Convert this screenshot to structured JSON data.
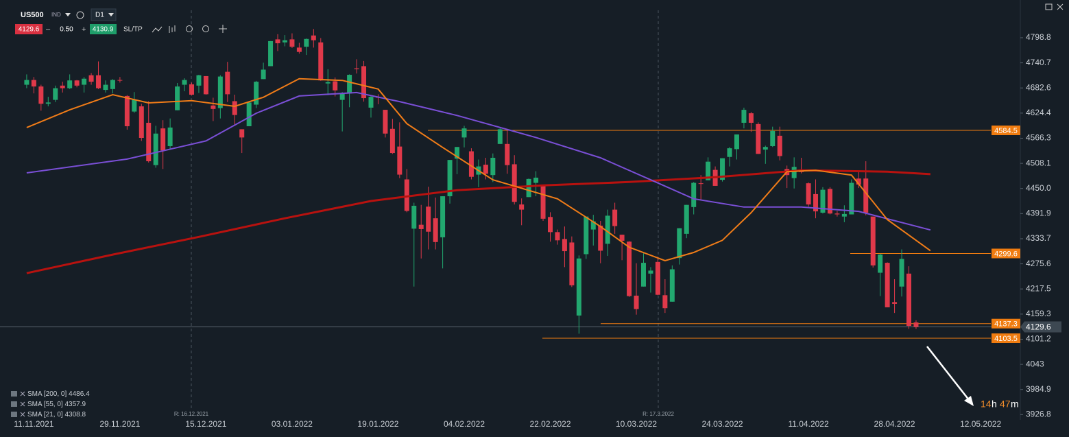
{
  "header": {
    "symbol": "US500",
    "market": "IND",
    "timeframe": "D1",
    "bid": "4129.6",
    "spread": "0.50",
    "ask": "4130.9",
    "sltp": "SL/TP"
  },
  "timer": [
    "14",
    "h",
    "47",
    "m"
  ],
  "chart_data": {
    "type": "candlestick",
    "categories": [
      null,
      null,
      null,
      "11.11.2021",
      null,
      null,
      null,
      null,
      null,
      null,
      null,
      null,
      null,
      null,
      null,
      "29.11.2021",
      null,
      null,
      null,
      null,
      null,
      null,
      null,
      null,
      null,
      null,
      null,
      "15.12.2021",
      null,
      null,
      null,
      null,
      null,
      null,
      null,
      null,
      null,
      null,
      null,
      "03.01.2022",
      null,
      null,
      null,
      null,
      null,
      null,
      null,
      null,
      null,
      null,
      null,
      "19.01.2022",
      null,
      null,
      null,
      null,
      null,
      null,
      null,
      null,
      null,
      null,
      null,
      "04.02.2022",
      null,
      null,
      null,
      null,
      null,
      null,
      null,
      null,
      null,
      null,
      null,
      "22.02.2022",
      null,
      null,
      null,
      null,
      null,
      null,
      null,
      null,
      null,
      null,
      null,
      "10.03.2022",
      null,
      null,
      null,
      null,
      null,
      null,
      null,
      null,
      null,
      null,
      null,
      "24.03.2022",
      null,
      null,
      null,
      null,
      null,
      null,
      null,
      null,
      null,
      null,
      null,
      "11.04.2022",
      null,
      null,
      null,
      null,
      null,
      null,
      null,
      null,
      null,
      null,
      null,
      "28.04.2022",
      null,
      null,
      null,
      null,
      null,
      null,
      null,
      null,
      null,
      null,
      null,
      "12.05.2022",
      null,
      null,
      null,
      null,
      null
    ],
    "ohlc": [
      null,
      null,
      [
        4690,
        4714,
        4682,
        4701
      ],
      [
        4701,
        4708,
        4670,
        4686
      ],
      [
        4686,
        4690,
        4630,
        4646
      ],
      [
        4646,
        4662,
        4640,
        4649
      ],
      [
        4655,
        4688,
        4650,
        4682
      ],
      [
        4688,
        4697,
        4672,
        4682
      ],
      [
        4682,
        4714,
        4680,
        4700
      ],
      [
        4700,
        4701,
        4684,
        4688
      ],
      [
        4690,
        4708,
        4672,
        4704
      ],
      [
        4712,
        4717,
        4690,
        4697
      ],
      [
        4712,
        4744,
        4680,
        4682
      ],
      [
        4678,
        4700,
        4672,
        4690
      ],
      [
        4680,
        4703,
        4670,
        4701
      ],
      [
        4701,
        4708,
        4695,
        4700
      ],
      [
        4664,
        4666,
        4586,
        4594
      ],
      [
        4628,
        4673,
        4625,
        4655
      ],
      [
        4640,
        4646,
        4560,
        4567
      ],
      [
        4602,
        4652,
        4510,
        4513
      ],
      [
        4504,
        4595,
        4498,
        4577
      ],
      [
        4589,
        4608,
        4495,
        4538
      ],
      [
        4548,
        4612,
        4540,
        4591
      ],
      [
        4631,
        4694,
        4631,
        4686
      ],
      [
        4690,
        4705,
        4675,
        4701
      ],
      [
        4691,
        4695,
        4665,
        4667
      ],
      [
        4688,
        4713,
        4671,
        4712
      ],
      [
        4710,
        4710,
        4667,
        4668
      ],
      [
        4642,
        4660,
        4606,
        4634
      ],
      [
        4636,
        4712,
        4612,
        4709
      ],
      [
        4720,
        4743,
        4650,
        4668
      ],
      [
        4652,
        4667,
        4598,
        4620
      ],
      [
        4587,
        4587,
        4532,
        4568
      ],
      [
        4594,
        4652,
        4594,
        4649
      ],
      [
        4644,
        4699,
        4636,
        4697
      ],
      [
        4703,
        4741,
        4703,
        4725
      ],
      [
        4733,
        4791,
        4733,
        4791
      ],
      [
        4795,
        4807,
        4768,
        4786
      ],
      [
        4788,
        4805,
        4779,
        4793
      ],
      [
        4795,
        4809,
        4775,
        4778
      ],
      [
        4776,
        4787,
        4762,
        4766
      ],
      [
        4778,
        4797,
        4759,
        4796
      ],
      [
        4804,
        4819,
        4776,
        4793
      ],
      [
        4788,
        4798,
        4699,
        4700
      ],
      [
        4693,
        4726,
        4666,
        4696
      ],
      [
        4698,
        4707,
        4663,
        4677
      ],
      [
        4655,
        4673,
        4582,
        4670
      ],
      [
        4670,
        4714,
        4638,
        4713
      ],
      [
        4728,
        4749,
        4716,
        4726
      ],
      [
        4733,
        4745,
        4651,
        4659
      ],
      [
        4637,
        4666,
        4614,
        4662
      ],
      [
        4662,
        4668,
        4645,
        4660
      ],
      [
        4632,
        4632,
        4568,
        4577
      ],
      [
        4588,
        4611,
        4530,
        4532
      ],
      [
        4547,
        4603,
        4474,
        4482
      ],
      [
        4471,
        4495,
        4395,
        4398
      ],
      [
        4357,
        4417,
        4223,
        4410
      ],
      [
        4366,
        4412,
        4288,
        4356
      ],
      [
        4408,
        4454,
        4309,
        4350
      ],
      [
        4381,
        4429,
        4309,
        4326
      ],
      [
        4337,
        4432,
        4265,
        4432
      ],
      [
        4432,
        4516,
        4415,
        4516
      ],
      [
        4519,
        4546,
        4483,
        4546
      ],
      [
        4568,
        4595,
        4545,
        4589
      ],
      [
        4536,
        4543,
        4471,
        4477
      ],
      [
        4482,
        4517,
        4453,
        4501
      ],
      [
        4505,
        4521,
        4471,
        4484
      ],
      [
        4481,
        4531,
        4465,
        4521
      ],
      [
        4553,
        4590,
        4553,
        4587
      ],
      [
        4553,
        4588,
        4484,
        4504
      ],
      [
        4506,
        4527,
        4413,
        4419
      ],
      [
        4413,
        4427,
        4365,
        4401
      ],
      [
        4430,
        4473,
        4430,
        4472
      ],
      [
        4463,
        4490,
        4432,
        4475
      ],
      [
        4457,
        4457,
        4375,
        4380
      ],
      [
        4384,
        4395,
        4327,
        4349
      ],
      [
        4349,
        4355,
        4320,
        4330
      ],
      [
        4333,
        4362,
        4268,
        4305
      ],
      [
        4325,
        4339,
        4222,
        4226
      ],
      [
        4156,
        4295,
        4114,
        4288
      ],
      [
        4298,
        4385,
        4287,
        4385
      ],
      [
        4355,
        4389,
        4318,
        4374
      ],
      [
        4364,
        4375,
        4277,
        4306
      ],
      [
        4322,
        4401,
        4294,
        4387
      ],
      [
        4401,
        4417,
        4345,
        4363
      ],
      [
        4343,
        4343,
        4284,
        4329
      ],
      [
        4327,
        4328,
        4199,
        4201
      ],
      [
        4202,
        4277,
        4158,
        4171
      ],
      [
        4223,
        4300,
        4223,
        4278
      ],
      [
        4253,
        4268,
        4209,
        4260
      ],
      [
        4280,
        4292,
        4203,
        4204
      ],
      [
        4203,
        4240,
        4162,
        4173
      ],
      [
        4188,
        4272,
        4188,
        4263
      ],
      [
        4289,
        4358,
        4274,
        4358
      ],
      [
        4345,
        4412,
        4335,
        4412
      ],
      [
        4407,
        4465,
        4390,
        4463
      ],
      [
        4462,
        4481,
        4425,
        4461
      ],
      [
        4469,
        4522,
        4469,
        4512
      ],
      [
        4493,
        4501,
        4456,
        4456
      ],
      [
        4470,
        4520,
        4466,
        4520
      ],
      [
        4523,
        4546,
        4501,
        4543
      ],
      [
        4541,
        4575,
        4517,
        4575
      ],
      [
        4602,
        4637,
        4589,
        4632
      ],
      [
        4624,
        4627,
        4581,
        4602
      ],
      [
        4599,
        4603,
        4530,
        4530
      ],
      [
        4540,
        4549,
        4507,
        4546
      ],
      [
        4548,
        4593,
        4546,
        4583
      ],
      [
        4572,
        4593,
        4515,
        4525
      ],
      [
        4495,
        4503,
        4451,
        4481
      ],
      [
        4474,
        4522,
        4450,
        4500
      ],
      [
        4494,
        4521,
        4485,
        4488
      ],
      [
        4462,
        4464,
        4408,
        4413
      ],
      [
        4437,
        4471,
        4381,
        4397
      ],
      [
        4394,
        4453,
        4392,
        4447
      ],
      [
        4449,
        4453,
        4390,
        4392
      ],
      [
        4392,
        4398,
        4385,
        4390
      ],
      [
        4385,
        4411,
        4372,
        4391
      ],
      [
        4390,
        4471,
        4390,
        4463
      ],
      [
        4473,
        4489,
        4451,
        4459
      ],
      [
        4473,
        4513,
        4388,
        4394
      ],
      [
        4385,
        4385,
        4267,
        4272
      ],
      [
        4255,
        4299,
        4201,
        4297
      ],
      [
        4278,
        4279,
        4175,
        4175
      ],
      [
        4187,
        4240,
        4162,
        4183
      ],
      [
        4223,
        4309,
        4200,
        4287
      ],
      [
        4253,
        4270,
        4125,
        4132
      ],
      [
        4140,
        4145,
        4125,
        4129.6
      ],
      null,
      null,
      null,
      null,
      null,
      null,
      null,
      null,
      null,
      null,
      null,
      null,
      null,
      null
    ],
    "up_color": "#22a86f",
    "down_color": "#e0394a",
    "series": [
      {
        "name": "SMA [200, 0]",
        "current": 4486.4,
        "color": "#b8120f",
        "x": [
          2,
          14,
          26,
          38,
          50,
          62,
          74,
          86,
          98,
          110,
          122,
          128
        ],
        "values": [
          4254,
          4297,
          4338,
          4381,
          4421,
          4446,
          4457,
          4465,
          4476,
          4492,
          4489,
          4483
        ]
      },
      {
        "name": "SMA [55, 0]",
        "current": 4357.9,
        "color": "#7a4fd6",
        "x": [
          2,
          16,
          27,
          34,
          40,
          48,
          54,
          62,
          73,
          82,
          89,
          95,
          102,
          110,
          118,
          128
        ],
        "values": [
          4486,
          4518,
          4560,
          4624,
          4664,
          4672,
          4651,
          4619,
          4568,
          4521,
          4470,
          4426,
          4407,
          4407,
          4397,
          4354
        ]
      },
      {
        "name": "SMA [21, 0]",
        "current": 4308.8,
        "color": "#f07c18",
        "x": [
          2,
          8,
          14,
          19,
          25,
          31,
          35,
          40,
          46,
          51,
          55,
          60,
          67,
          76,
          82,
          86,
          91,
          95,
          99,
          103,
          108,
          112,
          117,
          122,
          128
        ],
        "values": [
          4591,
          4632,
          4667,
          4648,
          4653,
          4640,
          4661,
          4704,
          4700,
          4680,
          4600,
          4545,
          4470,
          4426,
          4362,
          4314,
          4283,
          4302,
          4330,
          4394,
          4489,
          4492,
          4481,
          4378,
          4306
        ]
      }
    ],
    "levels": [
      4584.5,
      4299.6,
      4137.3,
      4103.5
    ],
    "level_color": "#f07c10",
    "current_price": 4129.6,
    "markers": [
      "R: 16.12.2021",
      "R: 17.3.2022"
    ],
    "ylim": [
      3914.6,
      4886.1
    ],
    "yticks": [
      4798.8,
      4740.7,
      4682.6,
      4624.4,
      4566.3,
      4508.1,
      {
        "value": 4450,
        "label": "4450.0"
      },
      4391.9,
      4333.7,
      4275.6,
      4217.5,
      4159.3,
      4101.2,
      4043.0,
      3984.9,
      3926.8
    ],
    "grid": false
  }
}
